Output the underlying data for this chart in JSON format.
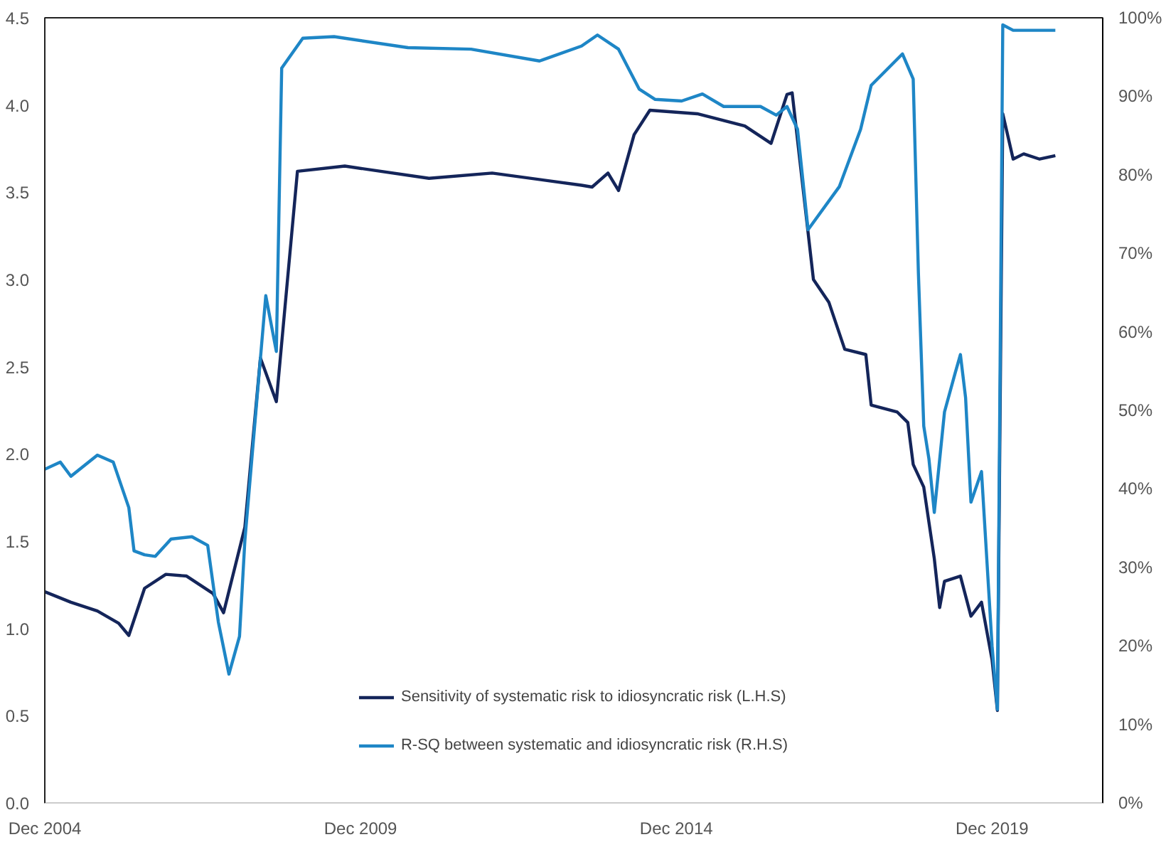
{
  "chart_data": {
    "type": "line",
    "xlim": [
      "2004-12",
      "2021-09"
    ],
    "xticks": [
      {
        "value": "2004-12",
        "label": "Dec 2004"
      },
      {
        "value": "2009-12",
        "label": "Dec 2009"
      },
      {
        "value": "2014-12",
        "label": "Dec 2014"
      },
      {
        "value": "2019-12",
        "label": "Dec 2019"
      }
    ],
    "ylim": [
      0,
      4.5
    ],
    "yticks": [
      {
        "value": 0,
        "label": "0.0"
      },
      0.5,
      {
        "value": 1,
        "label": "1.0"
      },
      1.5,
      {
        "value": 2,
        "label": "2.0"
      },
      2.5,
      {
        "value": 3,
        "label": "3.0"
      },
      3.5,
      {
        "value": 4,
        "label": "4.0"
      },
      4.5
    ],
    "y2lim": [
      0,
      100
    ],
    "y2ticks": [
      {
        "value": 0,
        "label": "0%"
      },
      {
        "value": 10,
        "label": "10%"
      },
      {
        "value": 20,
        "label": "20%"
      },
      {
        "value": 30,
        "label": "30%"
      },
      {
        "value": 40,
        "label": "40%"
      },
      {
        "value": 50,
        "label": "50%"
      },
      {
        "value": 60,
        "label": "60%"
      },
      {
        "value": 70,
        "label": "70%"
      },
      {
        "value": 80,
        "label": "80%"
      },
      {
        "value": 90,
        "label": "90%"
      },
      {
        "value": 100,
        "label": "100%"
      }
    ],
    "grid": false,
    "legend": "bottom",
    "marker": "none",
    "line_style": "solid",
    "series": [
      {
        "name": "Sensitivity of systematic risk to idiosyncratic risk (L.H.S)",
        "color": "#14255a",
        "x": [
          "2004-12",
          "2005-05",
          "2005-10",
          "2006-02",
          "2006-04",
          "2006-07",
          "2006-11",
          "2007-03",
          "2007-08",
          "2007-10",
          "2008-02",
          "2008-05",
          "2008-08",
          "2008-12",
          "2009-09",
          "2011-01",
          "2012-01",
          "2013-06",
          "2013-08",
          "2013-11",
          "2014-01",
          "2014-04",
          "2014-07",
          "2015-04",
          "2016-01",
          "2016-06",
          "2016-09",
          "2016-10",
          "2017-02",
          "2017-05",
          "2017-08",
          "2017-12",
          "2018-01",
          "2018-06",
          "2018-08",
          "2018-09",
          "2018-11",
          "2019-01",
          "2019-02",
          "2019-03",
          "2019-06",
          "2019-08",
          "2019-10",
          "2019-12",
          "2020-01",
          "2020-02",
          "2020-04",
          "2020-06",
          "2020-09",
          "2020-12"
        ],
        "values": [
          1.21,
          1.15,
          1.1,
          1.03,
          0.96,
          1.23,
          1.31,
          1.3,
          1.2,
          1.09,
          1.58,
          2.55,
          2.3,
          3.62,
          3.65,
          3.58,
          3.61,
          3.54,
          3.53,
          3.61,
          3.51,
          3.83,
          3.97,
          3.95,
          3.88,
          3.78,
          4.06,
          4.07,
          3.0,
          2.87,
          2.6,
          2.57,
          2.28,
          2.24,
          2.18,
          1.94,
          1.81,
          1.4,
          1.12,
          1.27,
          1.3,
          1.07,
          1.15,
          0.82,
          0.53,
          3.95,
          3.69,
          3.72,
          3.69,
          3.71
        ]
      },
      {
        "name": "R-SQ between systematic and idiosyncratic risk (R.H.S)",
        "color": "#1e86c6",
        "axis": "y2",
        "x": [
          "2004-12",
          "2005-03",
          "2005-05",
          "2005-10",
          "2006-01",
          "2006-04",
          "2006-05",
          "2006-07",
          "2006-09",
          "2006-12",
          "2007-04",
          "2007-07",
          "2007-09",
          "2007-11",
          "2008-01",
          "2008-02",
          "2008-06",
          "2008-08",
          "2008-09",
          "2009-01",
          "2009-07",
          "2010-09",
          "2011-09",
          "2012-10",
          "2013-06",
          "2013-09",
          "2014-01",
          "2014-05",
          "2014-08",
          "2015-01",
          "2015-05",
          "2015-09",
          "2016-04",
          "2016-07",
          "2016-09",
          "2016-11",
          "2017-01",
          "2017-07",
          "2017-11",
          "2018-01",
          "2018-07",
          "2018-09",
          "2018-10",
          "2018-11",
          "2018-12",
          "2019-01",
          "2019-03",
          "2019-05",
          "2019-06",
          "2019-07",
          "2019-08",
          "2019-10",
          "2019-12",
          "2020-01",
          "2020-02",
          "2020-04",
          "2020-12"
        ],
        "values": [
          42.5,
          43.4,
          41.6,
          44.3,
          43.4,
          37.6,
          32.1,
          31.6,
          31.4,
          33.6,
          33.9,
          32.8,
          23.0,
          16.4,
          21.2,
          33.4,
          64.6,
          57.5,
          93.6,
          97.4,
          97.6,
          96.2,
          96.0,
          94.5,
          96.4,
          97.8,
          96.0,
          90.9,
          89.6,
          89.4,
          90.3,
          88.7,
          88.7,
          87.6,
          88.7,
          85.8,
          73.0,
          78.5,
          85.8,
          91.4,
          95.4,
          92.2,
          67.5,
          48.0,
          43.8,
          37.0,
          49.8,
          54.7,
          57.1,
          51.6,
          38.3,
          42.2,
          20.0,
          11.9,
          99.1,
          98.4,
          98.4
        ]
      }
    ]
  }
}
